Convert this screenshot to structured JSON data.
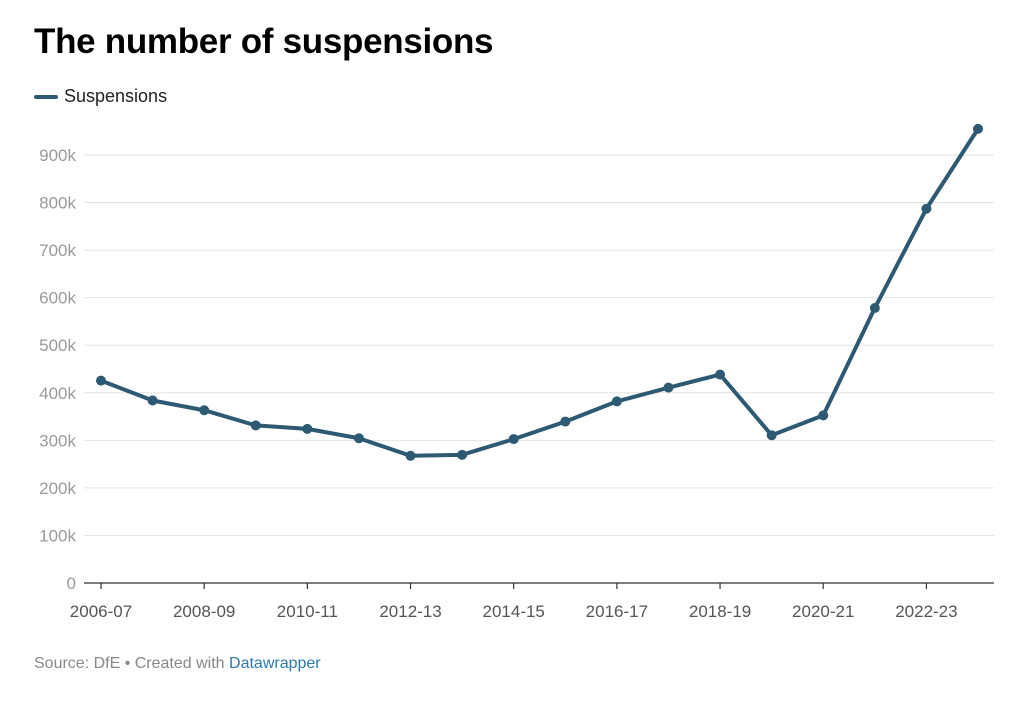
{
  "title": "The number of suspensions",
  "legend": {
    "label": "Suspensions",
    "color": "#2d5a72"
  },
  "footer": {
    "prefix": "Source: DfE • Created with ",
    "link_text": "Datawrapper"
  },
  "chart_data": {
    "type": "line",
    "title": "The number of suspensions",
    "xlabel": "",
    "ylabel": "",
    "ylim": [
      0,
      950000
    ],
    "yticks": [
      0,
      100000,
      200000,
      300000,
      400000,
      500000,
      600000,
      700000,
      800000,
      900000
    ],
    "ytick_labels": [
      "0",
      "100k",
      "200k",
      "300k",
      "400k",
      "500k",
      "600k",
      "700k",
      "800k",
      "900k"
    ],
    "xtick_labels": [
      "2006-07",
      "2008-09",
      "2010-11",
      "2012-13",
      "2014-15",
      "2016-17",
      "2018-19",
      "2020-21",
      "2022-23"
    ],
    "categories": [
      "2006-07",
      "2007-08",
      "2008-09",
      "2009-10",
      "2010-11",
      "2011-12",
      "2012-13",
      "2013-14",
      "2014-15",
      "2015-16",
      "2016-17",
      "2017-18",
      "2018-19",
      "2019-20",
      "2020-21",
      "2021-22",
      "2022-23",
      "2023-24"
    ],
    "series": [
      {
        "name": "Suspensions",
        "color": "#2d5a72",
        "values": [
          425600,
          383800,
          363300,
          331400,
          324100,
          304400,
          267500,
          269500,
          302600,
          339400,
          381900,
          410800,
          438300,
          310700,
          352500,
          578300,
          787000,
          954900
        ]
      }
    ],
    "grid": true,
    "legend_position": "top-left"
  }
}
